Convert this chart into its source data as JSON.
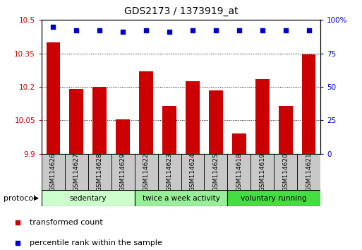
{
  "title": "GDS2173 / 1373919_at",
  "samples": [
    "GSM114626",
    "GSM114627",
    "GSM114628",
    "GSM114629",
    "GSM114622",
    "GSM114623",
    "GSM114624",
    "GSM114625",
    "GSM114618",
    "GSM114619",
    "GSM114620",
    "GSM114621"
  ],
  "bar_values": [
    10.4,
    10.19,
    10.2,
    10.055,
    10.27,
    10.115,
    10.225,
    10.185,
    9.99,
    10.235,
    10.115,
    10.345
  ],
  "percentile_values": [
    95,
    92,
    92,
    91,
    92,
    91,
    92,
    92,
    92,
    92,
    92,
    92
  ],
  "ylim_left": [
    9.9,
    10.5
  ],
  "ylim_right": [
    0,
    100
  ],
  "yticks_left": [
    9.9,
    10.05,
    10.2,
    10.35,
    10.5
  ],
  "ytick_labels_left": [
    "9.9",
    "10.05",
    "10.2",
    "10.35",
    "10.5"
  ],
  "yticks_right": [
    0,
    25,
    50,
    75,
    100
  ],
  "ytick_labels_right": [
    "0",
    "25",
    "50",
    "75",
    "100%"
  ],
  "bar_color": "#cc0000",
  "square_color": "#0000cc",
  "groups": [
    {
      "label": "sedentary",
      "indices": [
        0,
        1,
        2,
        3
      ],
      "color": "#ccffcc"
    },
    {
      "label": "twice a week activity",
      "indices": [
        4,
        5,
        6,
        7
      ],
      "color": "#99ee99"
    },
    {
      "label": "voluntary running",
      "indices": [
        8,
        9,
        10,
        11
      ],
      "color": "#44dd44"
    }
  ],
  "protocol_label": "protocol",
  "legend_items": [
    {
      "label": "transformed count",
      "color": "#cc0000"
    },
    {
      "label": "percentile rank within the sample",
      "color": "#0000cc"
    }
  ],
  "tick_label_color_left": "#cc0000",
  "tick_label_color_right": "#0000cc",
  "cell_color": "#c8c8c8",
  "grid_yticks": [
    10.05,
    10.2,
    10.35
  ]
}
